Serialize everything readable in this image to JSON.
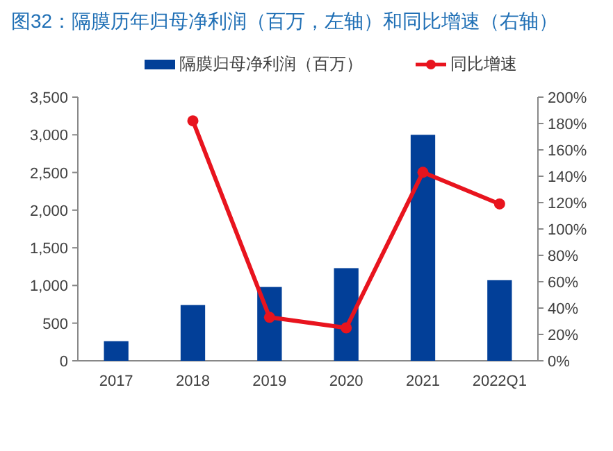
{
  "chart_data": {
    "type": "bar",
    "title": "图32：隔膜历年归母净利润（百万，左轴）和同比增速（右轴）",
    "categories": [
      "2017",
      "2018",
      "2019",
      "2020",
      "2021",
      "2022Q1"
    ],
    "series": [
      {
        "name": "隔膜归母净利润（百万）",
        "color": "#023f98",
        "values": [
          260,
          740,
          980,
          1230,
          3000,
          1070
        ]
      },
      {
        "name": "同比增速",
        "type": "line",
        "axis": "y2",
        "color": "#e8141e",
        "marker": "circle",
        "values": [
          null,
          182,
          33,
          25,
          143,
          119
        ]
      }
    ],
    "ylim": [
      0,
      3500
    ],
    "yticks": [
      0,
      500,
      {
        "value": 1000,
        "label": "1,000"
      },
      {
        "value": 1500,
        "label": "1,500"
      },
      {
        "value": 2000,
        "label": "2,000"
      },
      {
        "value": 2500,
        "label": "2,500"
      },
      {
        "value": 3000,
        "label": "3,000"
      },
      {
        "value": 3500,
        "label": "3,500"
      }
    ],
    "y2lim": [
      0,
      200
    ],
    "y2ticks": [
      {
        "value": 0,
        "label": "0%"
      },
      {
        "value": 20,
        "label": "20%"
      },
      {
        "value": 40,
        "label": "40%"
      },
      {
        "value": 60,
        "label": "60%"
      },
      {
        "value": 80,
        "label": "80%"
      },
      {
        "value": 100,
        "label": "100%"
      },
      {
        "value": 120,
        "label": "120%"
      },
      {
        "value": 140,
        "label": "140%"
      },
      {
        "value": 160,
        "label": "160%"
      },
      {
        "value": 180,
        "label": "180%"
      },
      {
        "value": 200,
        "label": "200%"
      }
    ],
    "legend": "top",
    "grid": false
  }
}
